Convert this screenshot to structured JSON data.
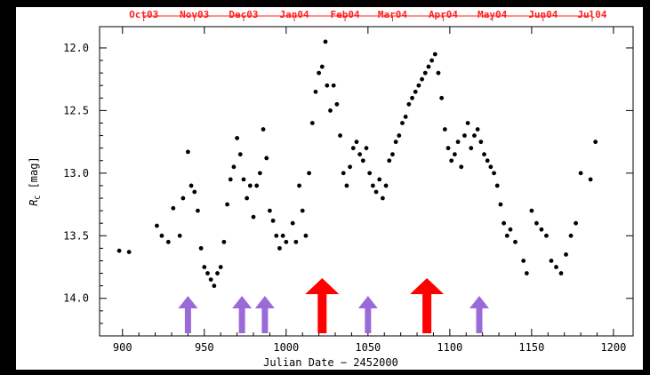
{
  "chart_data": {
    "type": "scatter",
    "title": "",
    "xlabel": "Julian Date − 2452000",
    "ylabel_main": "R",
    "ylabel_sub": "C",
    "ylabel_unit": " [mag]",
    "xlim": [
      886,
      1212
    ],
    "ylim": [
      14.3,
      11.83
    ],
    "y_inverted": true,
    "x_ticks": [
      900,
      950,
      1000,
      1050,
      1100,
      1150,
      1200
    ],
    "y_ticks": [
      12.0,
      12.5,
      13.0,
      13.5,
      14.0
    ],
    "top_axis_months": [
      {
        "label": "Oct03",
        "x": 913
      },
      {
        "label": "Nov03",
        "x": 944
      },
      {
        "label": "Dec03",
        "x": 974
      },
      {
        "label": "Jan04",
        "x": 1005
      },
      {
        "label": "Feb04",
        "x": 1036
      },
      {
        "label": "Mar04",
        "x": 1065
      },
      {
        "label": "Apr04",
        "x": 1096
      },
      {
        "label": "May04",
        "x": 1126
      },
      {
        "label": "Jun04",
        "x": 1157
      },
      {
        "label": "Jul04",
        "x": 1187
      }
    ],
    "grid": false,
    "marker_color": "#000000",
    "light_curve": [
      [
        898,
        13.62
      ],
      [
        904,
        13.63
      ],
      [
        921,
        13.42
      ],
      [
        924,
        13.5
      ],
      [
        928,
        13.55
      ],
      [
        931,
        13.28
      ],
      [
        935,
        13.5
      ],
      [
        937,
        13.2
      ],
      [
        940,
        12.83
      ],
      [
        942,
        13.1
      ],
      [
        944,
        13.15
      ],
      [
        946,
        13.3
      ],
      [
        948,
        13.6
      ],
      [
        950,
        13.75
      ],
      [
        952,
        13.8
      ],
      [
        954,
        13.85
      ],
      [
        956,
        13.9
      ],
      [
        958,
        13.8
      ],
      [
        960,
        13.75
      ],
      [
        962,
        13.55
      ],
      [
        964,
        13.25
      ],
      [
        966,
        13.05
      ],
      [
        968,
        12.95
      ],
      [
        970,
        12.72
      ],
      [
        972,
        12.85
      ],
      [
        974,
        13.05
      ],
      [
        976,
        13.2
      ],
      [
        978,
        13.1
      ],
      [
        980,
        13.35
      ],
      [
        982,
        13.1
      ],
      [
        984,
        13.0
      ],
      [
        986,
        12.65
      ],
      [
        988,
        12.88
      ],
      [
        990,
        13.3
      ],
      [
        992,
        13.38
      ],
      [
        994,
        13.5
      ],
      [
        996,
        13.6
      ],
      [
        998,
        13.5
      ],
      [
        1000,
        13.55
      ],
      [
        1004,
        13.4
      ],
      [
        1006,
        13.55
      ],
      [
        1008,
        13.1
      ],
      [
        1010,
        13.3
      ],
      [
        1012,
        13.5
      ],
      [
        1014,
        13.0
      ],
      [
        1016,
        12.6
      ],
      [
        1018,
        12.35
      ],
      [
        1020,
        12.2
      ],
      [
        1022,
        12.15
      ],
      [
        1024,
        11.95
      ],
      [
        1025,
        12.3
      ],
      [
        1027,
        12.5
      ],
      [
        1029,
        12.3
      ],
      [
        1031,
        12.45
      ],
      [
        1033,
        12.7
      ],
      [
        1035,
        13.0
      ],
      [
        1037,
        13.1
      ],
      [
        1039,
        12.95
      ],
      [
        1041,
        12.8
      ],
      [
        1043,
        12.75
      ],
      [
        1045,
        12.85
      ],
      [
        1047,
        12.9
      ],
      [
        1049,
        12.8
      ],
      [
        1051,
        13.0
      ],
      [
        1053,
        13.1
      ],
      [
        1055,
        13.15
      ],
      [
        1057,
        13.05
      ],
      [
        1059,
        13.2
      ],
      [
        1061,
        13.1
      ],
      [
        1063,
        12.9
      ],
      [
        1065,
        12.85
      ],
      [
        1067,
        12.75
      ],
      [
        1069,
        12.7
      ],
      [
        1071,
        12.6
      ],
      [
        1073,
        12.55
      ],
      [
        1075,
        12.45
      ],
      [
        1077,
        12.4
      ],
      [
        1079,
        12.35
      ],
      [
        1081,
        12.3
      ],
      [
        1083,
        12.25
      ],
      [
        1085,
        12.2
      ],
      [
        1087,
        12.15
      ],
      [
        1089,
        12.1
      ],
      [
        1091,
        12.05
      ],
      [
        1093,
        12.2
      ],
      [
        1095,
        12.4
      ],
      [
        1097,
        12.65
      ],
      [
        1099,
        12.8
      ],
      [
        1101,
        12.9
      ],
      [
        1103,
        12.85
      ],
      [
        1105,
        12.75
      ],
      [
        1107,
        12.95
      ],
      [
        1109,
        12.7
      ],
      [
        1111,
        12.6
      ],
      [
        1113,
        12.8
      ],
      [
        1115,
        12.7
      ],
      [
        1117,
        12.65
      ],
      [
        1119,
        12.75
      ],
      [
        1121,
        12.85
      ],
      [
        1123,
        12.9
      ],
      [
        1125,
        12.95
      ],
      [
        1127,
        13.0
      ],
      [
        1129,
        13.1
      ],
      [
        1131,
        13.25
      ],
      [
        1133,
        13.4
      ],
      [
        1135,
        13.5
      ],
      [
        1137,
        13.45
      ],
      [
        1140,
        13.55
      ],
      [
        1145,
        13.7
      ],
      [
        1147,
        13.8
      ],
      [
        1150,
        13.3
      ],
      [
        1153,
        13.4
      ],
      [
        1156,
        13.45
      ],
      [
        1159,
        13.5
      ],
      [
        1162,
        13.7
      ],
      [
        1165,
        13.75
      ],
      [
        1168,
        13.8
      ],
      [
        1171,
        13.65
      ],
      [
        1174,
        13.5
      ],
      [
        1177,
        13.4
      ],
      [
        1180,
        13.0
      ],
      [
        1186,
        13.05
      ],
      [
        1189,
        12.75
      ]
    ],
    "arrows": [
      {
        "x": 940,
        "color": "#9b6ad9",
        "size": "small"
      },
      {
        "x": 973,
        "color": "#9b6ad9",
        "size": "small"
      },
      {
        "x": 987,
        "color": "#9b6ad9",
        "size": "small"
      },
      {
        "x": 1022,
        "color": "#ff0000",
        "size": "large"
      },
      {
        "x": 1050,
        "color": "#9b6ad9",
        "size": "small"
      },
      {
        "x": 1086,
        "color": "#ff0000",
        "size": "large"
      },
      {
        "x": 1118,
        "color": "#9b6ad9",
        "size": "small"
      }
    ]
  }
}
